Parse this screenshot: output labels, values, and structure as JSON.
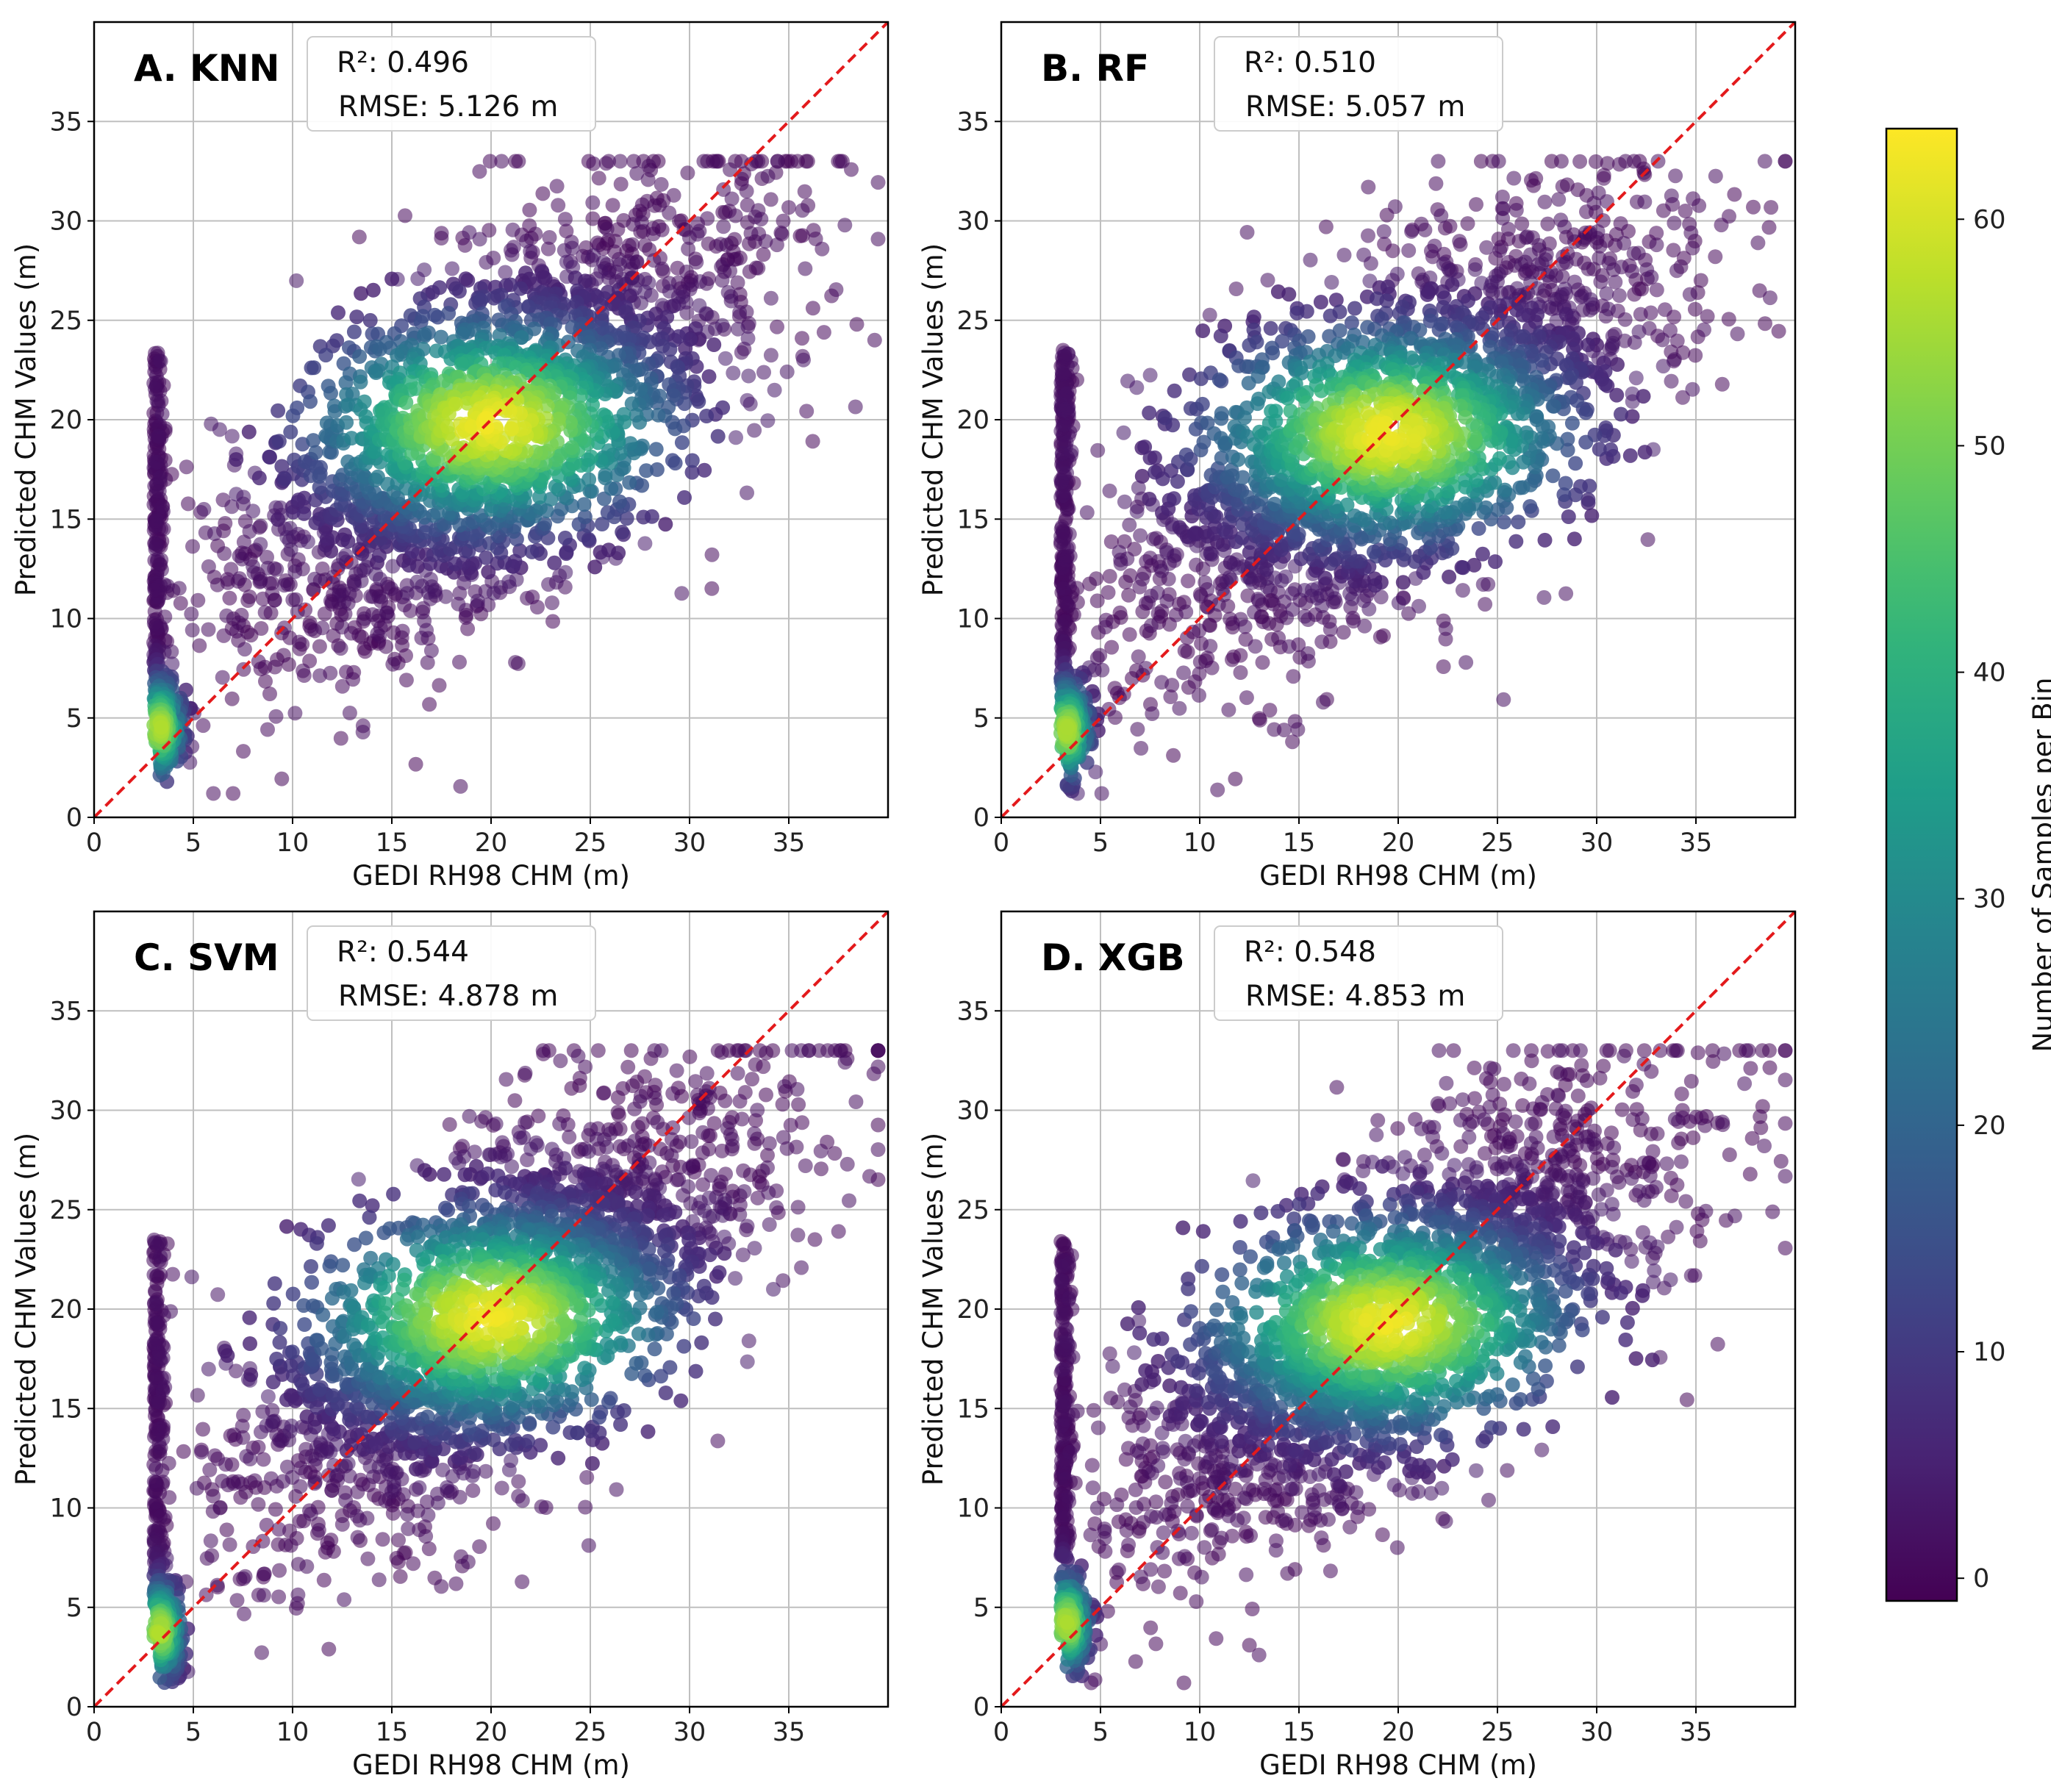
{
  "colors": {
    "identity_line": "#e31a1c",
    "grid": "#bfbfbf",
    "colormap": "viridis",
    "sparse_point": "#6a3d8f"
  },
  "chart_data": [
    {
      "type": "scatter",
      "panel": "A",
      "title": "A. KNN",
      "r2_label": "R²: 0.496",
      "rmse_label": "RMSE: 5.126",
      "rmse_unit": "m",
      "xlabel": "GEDI RH98 CHM (m)",
      "ylabel": "Predicted CHM Values (m)",
      "xlim": [
        0,
        40
      ],
      "ylim": [
        0,
        40
      ],
      "xticks": [
        0,
        5,
        10,
        15,
        20,
        25,
        30,
        35
      ],
      "yticks": [
        0,
        5,
        10,
        15,
        20,
        25,
        30,
        35
      ],
      "grid": true,
      "identity_line": true,
      "density_peak": [
        20,
        19.8
      ],
      "low_cluster": [
        3.3,
        4.5
      ],
      "slope": 0.55,
      "intercept": 8.6,
      "spread": 4.5,
      "seed": 11
    },
    {
      "type": "scatter",
      "panel": "B",
      "title": "B. RF",
      "r2_label": "R²: 0.510",
      "rmse_label": "RMSE: 5.057",
      "rmse_unit": "m",
      "xlabel": "GEDI RH98 CHM (m)",
      "ylabel": "Predicted CHM Values (m)",
      "xlim": [
        0,
        40
      ],
      "ylim": [
        0,
        40
      ],
      "xticks": [
        0,
        5,
        10,
        15,
        20,
        25,
        30,
        35
      ],
      "yticks": [
        0,
        5,
        10,
        15,
        20,
        25,
        30,
        35
      ],
      "grid": true,
      "identity_line": true,
      "density_peak": [
        19.5,
        19.3
      ],
      "low_cluster": [
        3.3,
        4.4
      ],
      "slope": 0.55,
      "intercept": 8.4,
      "spread": 4.4,
      "seed": 23
    },
    {
      "type": "scatter",
      "panel": "C",
      "title": "C. SVM",
      "r2_label": "R²: 0.544",
      "rmse_label": "RMSE: 4.878",
      "rmse_unit": "m",
      "xlabel": "GEDI RH98 CHM (m)",
      "ylabel": "Predicted CHM Values (m)",
      "xlim": [
        0,
        40
      ],
      "ylim": [
        0,
        40
      ],
      "xticks": [
        0,
        5,
        10,
        15,
        20,
        25,
        30,
        35
      ],
      "yticks": [
        0,
        5,
        10,
        15,
        20,
        25,
        30,
        35
      ],
      "grid": true,
      "identity_line": true,
      "density_peak": [
        20,
        19.6
      ],
      "low_cluster": [
        3.3,
        3.8
      ],
      "slope": 0.6,
      "intercept": 7.6,
      "spread": 4.3,
      "seed": 37
    },
    {
      "type": "scatter",
      "panel": "D",
      "title": "D. XGB",
      "r2_label": "R²: 0.548",
      "rmse_label": "RMSE: 4.853",
      "rmse_unit": "m",
      "xlabel": "GEDI RH98 CHM (m)",
      "ylabel": "Predicted CHM Values (m)",
      "xlim": [
        0,
        40
      ],
      "ylim": [
        0,
        40
      ],
      "xticks": [
        0,
        5,
        10,
        15,
        20,
        25,
        30,
        35
      ],
      "yticks": [
        0,
        5,
        10,
        15,
        20,
        25,
        30,
        35
      ],
      "grid": true,
      "identity_line": true,
      "density_peak": [
        19.5,
        19.3
      ],
      "low_cluster": [
        3.3,
        4.2
      ],
      "slope": 0.6,
      "intercept": 7.6,
      "spread": 4.2,
      "seed": 53
    }
  ],
  "colorbar": {
    "label": "Number of Samples per Bin",
    "range": [
      -1,
      64
    ],
    "ticks": [
      0,
      10,
      20,
      30,
      40,
      50,
      60
    ],
    "colormap": "viridis"
  }
}
